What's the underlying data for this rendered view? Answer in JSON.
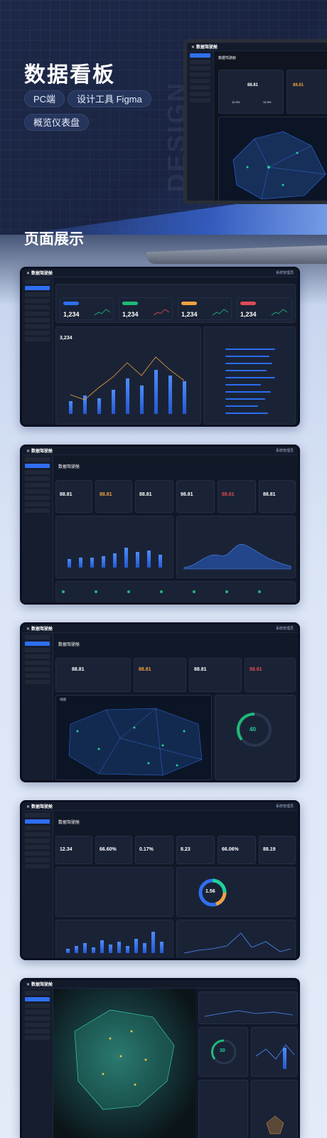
{
  "hero": {
    "title": "数据看板",
    "tags": [
      "PC端",
      "设计工具 Figma",
      "概览仪表盘"
    ],
    "watermark": "DESIGN"
  },
  "section_title": "页面展示",
  "app": {
    "brand": "数据驾驶舱",
    "user": "系统管理员"
  },
  "laptop": {
    "page_title": "数据驾驶舱",
    "metric1": "88.81",
    "metric2": "88.81",
    "pct1": "12.3%",
    "pct2": "12.3%"
  },
  "dash1": {
    "cards": [
      "1,234",
      "1,234",
      "1,234",
      "1,234"
    ],
    "chart_value": "3,234",
    "accent": [
      "#2f6ff0",
      "#1fb97a",
      "#f0a040",
      "#e04a55"
    ]
  },
  "dash2": {
    "title": "数据驾驶舱",
    "metrics": [
      "88.81",
      "88.81",
      "88.81",
      "98.81",
      "88.81",
      "88.81"
    ]
  },
  "dash3": {
    "title": "数据驾驶舱",
    "metrics": [
      "88.81",
      "88.81",
      "88.81",
      "88.81"
    ],
    "gauge": "40",
    "map_label": "地图"
  },
  "dash4": {
    "title": "数据驾驶舱",
    "metrics": [
      "12.34",
      "66.60%",
      "0.17%",
      "8.23",
      "66.06%",
      "88.19"
    ],
    "donut": "1.56"
  },
  "dash5": {
    "gauge": "30"
  }
}
